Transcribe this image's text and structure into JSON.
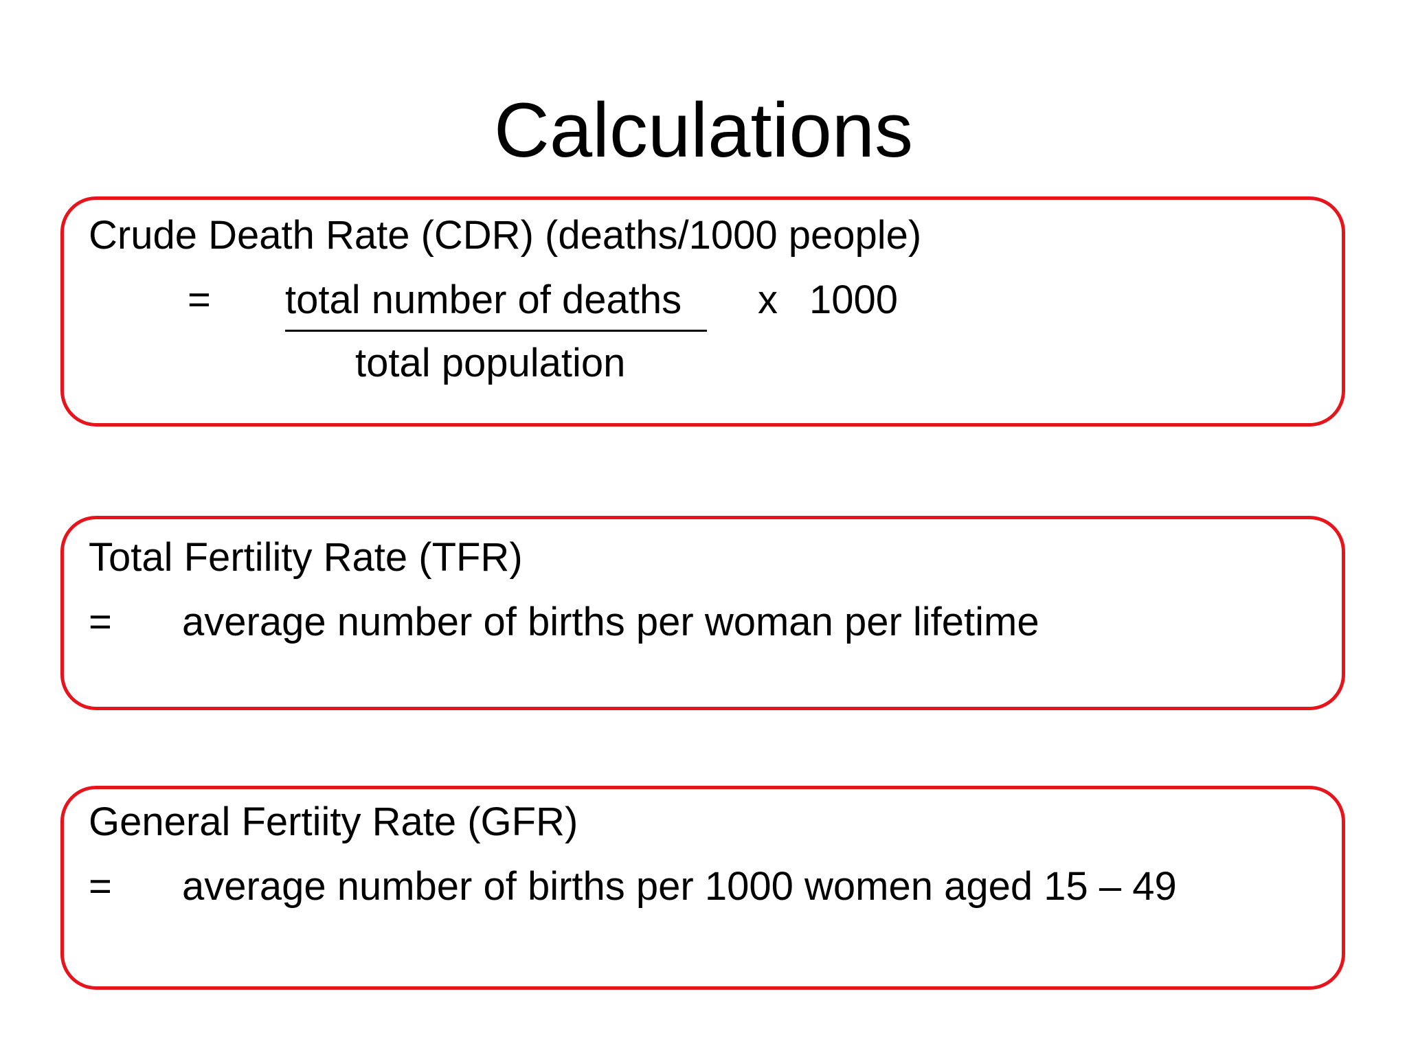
{
  "slide": {
    "title": "Calculations",
    "accent_color": "#e8141c",
    "cdr": {
      "heading": "Crude Death Rate (CDR) (deaths/1000 people)",
      "equals": "=",
      "numerator": "total number of deaths",
      "denominator": "total population",
      "times": "x",
      "multiplier": "1000"
    },
    "tfr": {
      "heading": "Total Fertility Rate (TFR)",
      "equals": "=",
      "definition": "average number of births per woman per lifetime"
    },
    "gfr": {
      "heading": "General Fertiity Rate (GFR)",
      "equals": "=",
      "definition": "average number of births per 1000 women aged 15 – 49"
    }
  }
}
